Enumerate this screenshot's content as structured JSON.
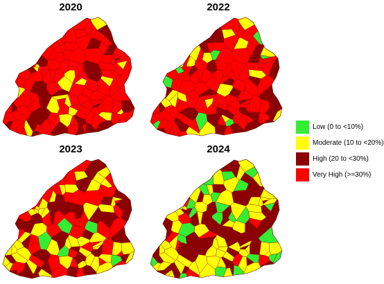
{
  "panels": [
    {
      "id": "p2020",
      "title": "2020",
      "class_weights": [
        0.0,
        0.1,
        0.18,
        0.72
      ],
      "seed": 11
    },
    {
      "id": "p2022",
      "title": "2022",
      "class_weights": [
        0.05,
        0.13,
        0.27,
        0.55
      ],
      "seed": 23
    },
    {
      "id": "p2023",
      "title": "2023",
      "class_weights": [
        0.04,
        0.3,
        0.33,
        0.33
      ],
      "seed": 37
    },
    {
      "id": "p2024",
      "title": "2024",
      "class_weights": [
        0.14,
        0.38,
        0.34,
        0.14
      ],
      "seed": 53
    }
  ],
  "legend": {
    "items": [
      {
        "label": "Low (0 to <10%)",
        "color": "#33ee33"
      },
      {
        "label": "Moderate (10 to <20%)",
        "color": "#ffff00"
      },
      {
        "label": "High (20 to <30%)",
        "color": "#8b0000"
      },
      {
        "label": "Very High (>=30%)",
        "color": "#ff0000"
      }
    ]
  }
}
